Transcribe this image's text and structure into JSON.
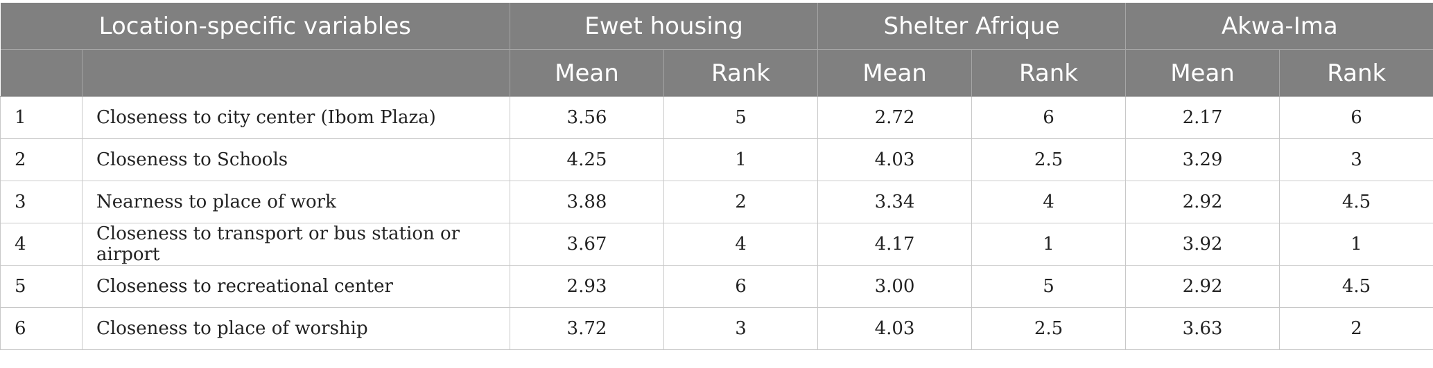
{
  "header": {
    "title": "Location-specific variables",
    "groups": [
      "Ewet housing",
      "Shelter Afrique",
      "Akwa-Ima"
    ],
    "sub": [
      "Mean",
      "Rank"
    ]
  },
  "rows": [
    {
      "no": "1",
      "variable": "Closeness to city center (Ibom Plaza)",
      "ewet_mean": "3.56",
      "ewet_rank": "5",
      "shelter_mean": "2.72",
      "shelter_rank": "6",
      "akwa_mean": "2.17",
      "akwa_rank": "6"
    },
    {
      "no": "2",
      "variable": "Closeness to Schools",
      "ewet_mean": "4.25",
      "ewet_rank": "1",
      "shelter_mean": "4.03",
      "shelter_rank": "2.5",
      "akwa_mean": "3.29",
      "akwa_rank": "3"
    },
    {
      "no": "3",
      "variable": "Nearness to place of work",
      "ewet_mean": "3.88",
      "ewet_rank": "2",
      "shelter_mean": "3.34",
      "shelter_rank": "4",
      "akwa_mean": "2.92",
      "akwa_rank": "4.5"
    },
    {
      "no": "4",
      "variable": "Closeness to transport or bus station or airport",
      "ewet_mean": "3.67",
      "ewet_rank": "4",
      "shelter_mean": "4.17",
      "shelter_rank": "1",
      "akwa_mean": "3.92",
      "akwa_rank": "1"
    },
    {
      "no": "5",
      "variable": "Closeness to recreational center",
      "ewet_mean": "2.93",
      "ewet_rank": "6",
      "shelter_mean": "3.00",
      "shelter_rank": "5",
      "akwa_mean": "2.92",
      "akwa_rank": "4.5"
    },
    {
      "no": "6",
      "variable": "Closeness to place of worship",
      "ewet_mean": "3.72",
      "ewet_rank": "3",
      "shelter_mean": "4.03",
      "shelter_rank": "2.5",
      "akwa_mean": "3.63",
      "akwa_rank": "2"
    }
  ]
}
